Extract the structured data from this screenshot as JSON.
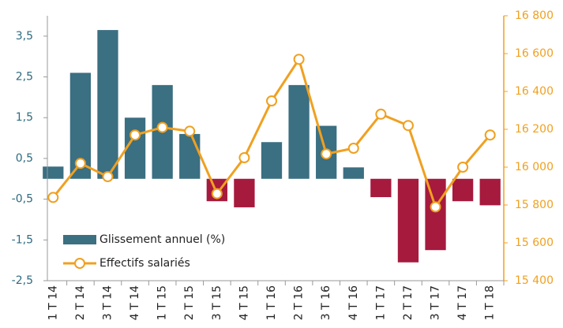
{
  "chart_data": {
    "type": "bar_line",
    "categories": [
      "1 T 14",
      "2 T 14",
      "3 T 14",
      "4 T 14",
      "1 T 15",
      "2 T 15",
      "3 T 15",
      "4 T 15",
      "1 T 16",
      "2 T 16",
      "3 T 16",
      "4 T 16",
      "1 T 17",
      "2 T 17",
      "3 T 17",
      "4 T 17",
      "1 T 18"
    ],
    "series": [
      {
        "name": "Glissement annuel (%)",
        "type": "bar",
        "color": "#3b6f82",
        "negative_color": "#a61a3e",
        "axis": "y",
        "values": [
          0.3,
          2.6,
          3.65,
          1.5,
          2.3,
          1.1,
          -0.55,
          -0.7,
          0.9,
          2.3,
          1.3,
          0.28,
          -0.45,
          -2.05,
          -1.75,
          -0.55,
          -0.65
        ]
      },
      {
        "name": "Effectifs salariés",
        "type": "line",
        "color": "#f0a020",
        "axis": "y2",
        "values": [
          15840,
          16020,
          15950,
          16170,
          16210,
          16190,
          15860,
          16050,
          16350,
          16570,
          16070,
          16100,
          16280,
          16220,
          15790,
          16000,
          16170
        ]
      }
    ],
    "ylim": [
      -2.5,
      4
    ],
    "yticks": [
      {
        "value": -2.5,
        "label": "-2,5"
      },
      {
        "value": -1.5,
        "label": "-1,5"
      },
      {
        "value": -0.5,
        "label": "-0,5"
      },
      {
        "value": 0.5,
        "label": "0,5"
      },
      {
        "value": 1.5,
        "label": "1,5"
      },
      {
        "value": 2.5,
        "label": "2,5"
      },
      {
        "value": 3.5,
        "label": "3,5"
      }
    ],
    "y2lim": [
      15400,
      16800
    ],
    "y2ticks": [
      {
        "value": 15400,
        "label": "15 400"
      },
      {
        "value": 15600,
        "label": "15 600"
      },
      {
        "value": 15800,
        "label": "15 800"
      },
      {
        "value": 16000,
        "label": "16 000"
      },
      {
        "value": 16200,
        "label": "16 200"
      },
      {
        "value": 16400,
        "label": "16 400"
      },
      {
        "value": 16600,
        "label": "16 600"
      },
      {
        "value": 16800,
        "label": "16 800"
      }
    ],
    "legend": "lower left"
  }
}
